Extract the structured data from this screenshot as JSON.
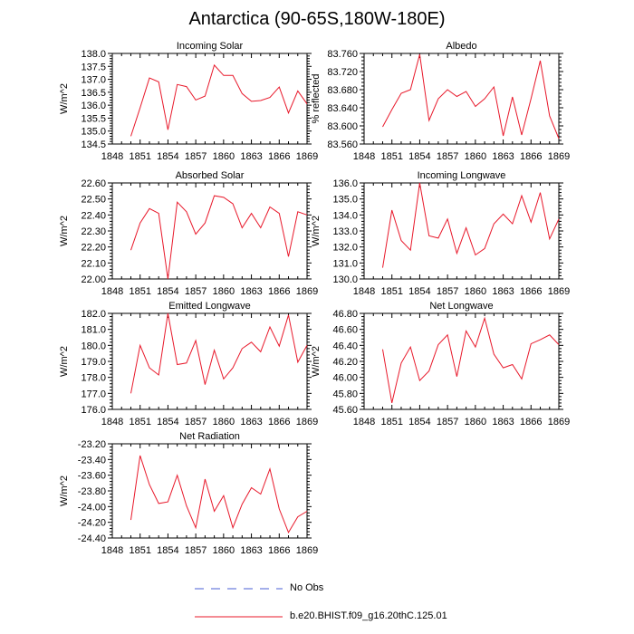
{
  "title": "Antarctica (90-65S,180W-180E)",
  "legend": {
    "entries": [
      {
        "label": "No Obs",
        "color": "#4a5fd6",
        "style": "dashed"
      },
      {
        "label": "b.e20.BHIST.f09_g16.20thC.125.01",
        "color": "#e8182a",
        "style": "solid"
      }
    ]
  },
  "chart_data": [
    {
      "type": "line",
      "title": "Incoming Solar",
      "ylabel": "W/m^2",
      "xlim": [
        1848,
        1869
      ],
      "xticks": [
        "1848",
        "1851",
        "1854",
        "1857",
        "1860",
        "1863",
        "1866",
        "1869"
      ],
      "ylim": [
        134.5,
        138.0
      ],
      "yticks": [
        "134.5",
        "135.0",
        "135.5",
        "136.0",
        "136.5",
        "137.0",
        "137.5",
        "138.0"
      ],
      "series": [
        {
          "color": "#e8182a",
          "x": [
            1850,
            1851,
            1852,
            1853,
            1854,
            1855,
            1856,
            1857,
            1858,
            1859,
            1860,
            1861,
            1862,
            1863,
            1864,
            1865,
            1866,
            1867,
            1868,
            1869
          ],
          "y": [
            134.8,
            135.9,
            137.05,
            136.9,
            135.05,
            136.8,
            136.72,
            136.2,
            136.35,
            137.55,
            137.15,
            137.15,
            136.45,
            136.15,
            136.18,
            136.3,
            136.7,
            135.7,
            136.55,
            136.05
          ]
        }
      ]
    },
    {
      "type": "line",
      "title": "Albedo",
      "ylabel": "% reflected",
      "xlim": [
        1848,
        1869
      ],
      "xticks": [
        "1848",
        "1851",
        "1854",
        "1857",
        "1860",
        "1863",
        "1866",
        "1869"
      ],
      "ylim": [
        83.56,
        83.76
      ],
      "yticks": [
        "83.560",
        "83.600",
        "83.640",
        "83.680",
        "83.720",
        "83.760"
      ],
      "series": [
        {
          "color": "#e8182a",
          "x": [
            1850,
            1851,
            1852,
            1853,
            1854,
            1855,
            1856,
            1857,
            1858,
            1859,
            1860,
            1861,
            1862,
            1863,
            1864,
            1865,
            1866,
            1867,
            1868,
            1869
          ],
          "y": [
            83.598,
            83.636,
            83.672,
            83.68,
            83.758,
            83.612,
            83.66,
            83.68,
            83.665,
            83.676,
            83.643,
            83.66,
            83.686,
            83.578,
            83.664,
            83.58,
            83.66,
            83.744,
            83.622,
            83.572
          ]
        }
      ]
    },
    {
      "type": "line",
      "title": "Absorbed Solar",
      "ylabel": "W/m^2",
      "xlim": [
        1848,
        1869
      ],
      "xticks": [
        "1848",
        "1851",
        "1854",
        "1857",
        "1860",
        "1863",
        "1866",
        "1869"
      ],
      "ylim": [
        22.0,
        22.6
      ],
      "yticks": [
        "22.00",
        "22.10",
        "22.20",
        "22.30",
        "22.40",
        "22.50",
        "22.60"
      ],
      "series": [
        {
          "color": "#e8182a",
          "x": [
            1850,
            1851,
            1852,
            1853,
            1854,
            1855,
            1856,
            1857,
            1858,
            1859,
            1860,
            1861,
            1862,
            1863,
            1864,
            1865,
            1866,
            1867,
            1868,
            1869
          ],
          "y": [
            22.18,
            22.35,
            22.44,
            22.41,
            22.0,
            22.48,
            22.42,
            22.28,
            22.35,
            22.52,
            22.51,
            22.47,
            22.32,
            22.41,
            22.32,
            22.45,
            22.41,
            22.14,
            22.42,
            22.4
          ]
        }
      ]
    },
    {
      "type": "line",
      "title": "Incoming Longwave",
      "ylabel": "W/m^2",
      "xlim": [
        1848,
        1869
      ],
      "xticks": [
        "1848",
        "1851",
        "1854",
        "1857",
        "1860",
        "1863",
        "1866",
        "1869"
      ],
      "ylim": [
        130.0,
        136.0
      ],
      "yticks": [
        "130.0",
        "131.0",
        "132.0",
        "133.0",
        "134.0",
        "135.0",
        "136.0"
      ],
      "series": [
        {
          "color": "#e8182a",
          "x": [
            1850,
            1851,
            1852,
            1853,
            1854,
            1855,
            1856,
            1857,
            1858,
            1859,
            1860,
            1861,
            1862,
            1863,
            1864,
            1865,
            1866,
            1867,
            1868,
            1869
          ],
          "y": [
            130.7,
            134.3,
            132.4,
            131.8,
            136.0,
            132.7,
            132.55,
            133.75,
            131.6,
            133.2,
            131.5,
            131.9,
            133.45,
            134.05,
            133.45,
            135.2,
            133.55,
            135.4,
            132.5,
            133.75
          ]
        }
      ]
    },
    {
      "type": "line",
      "title": "Emitted Longwave",
      "ylabel": "W/m^2",
      "xlim": [
        1848,
        1869
      ],
      "xticks": [
        "1848",
        "1851",
        "1854",
        "1857",
        "1860",
        "1863",
        "1866",
        "1869"
      ],
      "ylim": [
        176.0,
        182.0
      ],
      "yticks": [
        "176.0",
        "177.0",
        "178.0",
        "179.0",
        "180.0",
        "181.0",
        "182.0"
      ],
      "series": [
        {
          "color": "#e8182a",
          "x": [
            1850,
            1851,
            1852,
            1853,
            1854,
            1855,
            1856,
            1857,
            1858,
            1859,
            1860,
            1861,
            1862,
            1863,
            1864,
            1865,
            1866,
            1867,
            1868,
            1869
          ],
          "y": [
            177.0,
            180.0,
            178.6,
            178.15,
            182.0,
            178.8,
            178.9,
            180.3,
            177.55,
            179.7,
            177.9,
            178.6,
            179.8,
            180.2,
            179.6,
            181.15,
            179.95,
            181.9,
            178.95,
            180.0
          ]
        }
      ]
    },
    {
      "type": "line",
      "title": "Net Longwave",
      "ylabel": "W/m^2",
      "xlim": [
        1848,
        1869
      ],
      "xticks": [
        "1848",
        "1851",
        "1854",
        "1857",
        "1860",
        "1863",
        "1866",
        "1869"
      ],
      "ylim": [
        45.6,
        46.8
      ],
      "yticks": [
        "45.60",
        "45.80",
        "46.00",
        "46.20",
        "46.40",
        "46.60",
        "46.80"
      ],
      "series": [
        {
          "color": "#e8182a",
          "x": [
            1850,
            1851,
            1852,
            1853,
            1854,
            1855,
            1856,
            1857,
            1858,
            1859,
            1860,
            1861,
            1862,
            1863,
            1864,
            1865,
            1866,
            1867,
            1868,
            1869
          ],
          "y": [
            46.35,
            45.68,
            46.18,
            46.38,
            45.96,
            46.08,
            46.41,
            46.53,
            46.01,
            46.58,
            46.38,
            46.74,
            46.29,
            46.12,
            46.16,
            45.98,
            46.42,
            46.47,
            46.53,
            46.41
          ]
        }
      ]
    },
    {
      "type": "line",
      "title": "Net Radiation",
      "ylabel": "W/m^2",
      "xlim": [
        1848,
        1869
      ],
      "xticks": [
        "1848",
        "1851",
        "1854",
        "1857",
        "1860",
        "1863",
        "1866",
        "1869"
      ],
      "ylim": [
        -24.4,
        -23.2
      ],
      "yticks": [
        "-24.40",
        "-24.20",
        "-24.00",
        "-23.80",
        "-23.60",
        "-23.40",
        "-23.20"
      ],
      "series": [
        {
          "color": "#e8182a",
          "x": [
            1850,
            1851,
            1852,
            1853,
            1854,
            1855,
            1856,
            1857,
            1858,
            1859,
            1860,
            1861,
            1862,
            1863,
            1864,
            1865,
            1866,
            1867,
            1868,
            1869
          ],
          "y": [
            -24.17,
            -23.35,
            -23.72,
            -23.96,
            -23.94,
            -23.6,
            -23.99,
            -24.27,
            -23.65,
            -24.06,
            -23.86,
            -24.27,
            -23.97,
            -23.76,
            -23.84,
            -23.52,
            -24.03,
            -24.33,
            -24.13,
            -24.06
          ]
        }
      ]
    }
  ]
}
